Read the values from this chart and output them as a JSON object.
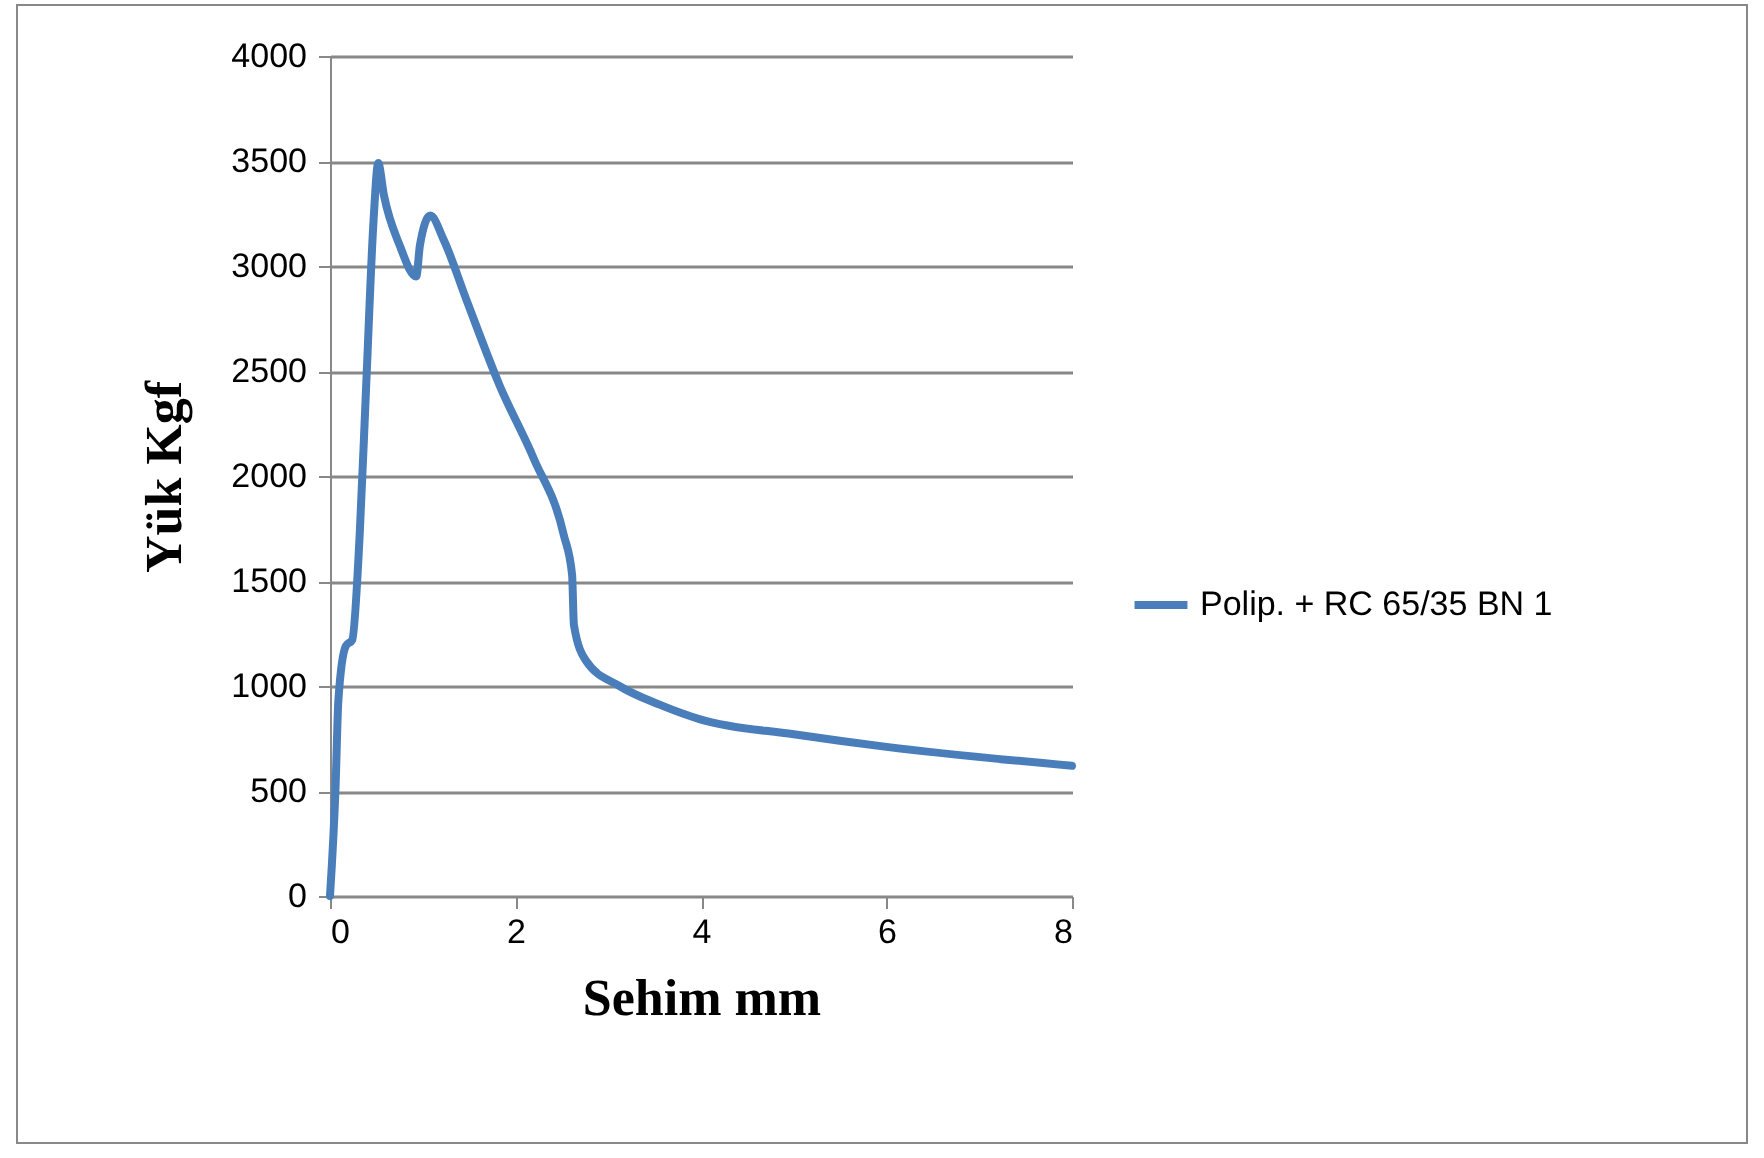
{
  "chart_data": {
    "type": "line",
    "xlabel": "Sehim  mm",
    "ylabel": "Yük  Kgf",
    "xlim": [
      0,
      8
    ],
    "xticks": [
      0,
      2,
      4,
      6,
      8
    ],
    "ylim": [
      0,
      4000
    ],
    "yticks": [
      0,
      500,
      1000,
      1500,
      2000,
      2500,
      3000,
      3500,
      4000
    ],
    "grid": "y",
    "legend": "right",
    "marker": "none",
    "line_style": "solid",
    "series": [
      {
        "name": "Polip. + RC 65/35 BN 1",
        "color": "#4a7ebb",
        "x": [
          0,
          0.06,
          0.09,
          0.17,
          0.24,
          0.32,
          0.39,
          0.47,
          0.52,
          0.58,
          0.75,
          0.93,
          0.97,
          1.08,
          1.23,
          1.47,
          1.83,
          2.2,
          2.52,
          2.61,
          2.63,
          2.76,
          3.12,
          3.56,
          4.0,
          5.0,
          6.0,
          8.0
        ],
        "values": [
          0,
          520,
          930,
          1190,
          1220,
          1720,
          2430,
          3220,
          3490,
          3340,
          3100,
          2950,
          3100,
          3240,
          3120,
          2840,
          2430,
          2080,
          1720,
          1530,
          1290,
          1120,
          1000,
          910,
          840,
          770,
          710,
          620
        ]
      }
    ]
  }
}
